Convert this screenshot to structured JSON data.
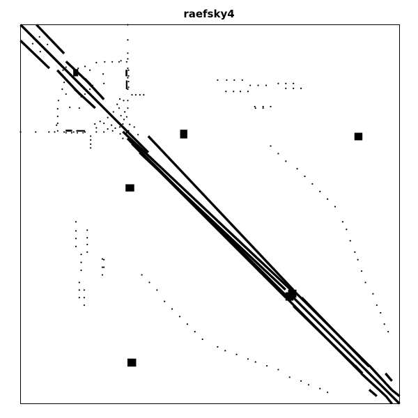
{
  "chart_data": {
    "type": "scatter",
    "title": "raefsky4",
    "xlabel": "",
    "ylabel": "",
    "xlim": [
      0,
      1
    ],
    "ylim": [
      0,
      1
    ],
    "y_axis_inverted": true,
    "axis_ticks": "none",
    "grid": false,
    "legend": "none",
    "marker_color": "#000000",
    "background": "#ffffff",
    "series": [
      {
        "kind": "band",
        "values": [
          [
            [
              0.0,
              0.0
            ],
            [
              0.337,
              0.337
            ]
          ],
          [
            [
              0.0,
              0.042
            ],
            [
              0.076,
              0.115
            ]
          ],
          [
            [
              0.042,
              0.0
            ],
            [
              0.115,
              0.076
            ]
          ],
          [
            [
              0.097,
              0.12
            ],
            [
              0.158,
              0.185
            ]
          ],
          [
            [
              0.12,
              0.097
            ],
            [
              0.185,
              0.158
            ]
          ],
          [
            [
              0.143,
              0.17
            ],
            [
              0.197,
              0.22
            ]
          ],
          [
            [
              0.17,
              0.143
            ],
            [
              0.22,
              0.197
            ]
          ],
          [
            [
              0.314,
              0.337
            ],
            [
              0.699,
              0.699
            ]
          ],
          [
            [
              0.294,
              0.314
            ],
            [
              0.7,
              0.72
            ]
          ],
          [
            [
              0.282,
              0.3
            ],
            [
              0.706,
              0.72
            ]
          ],
          [
            [
              0.337,
              0.294
            ],
            [
              0.72,
              0.7
            ]
          ],
          [
            [
              0.27,
              0.282
            ],
            [
              0.72,
              0.706
            ]
          ],
          [
            [
              0.72,
              0.72
            ],
            [
              1.0,
              1.0
            ]
          ],
          [
            [
              0.701,
              0.72
            ],
            [
              0.9,
              0.92
            ]
          ],
          [
            [
              0.72,
              0.701
            ],
            [
              0.92,
              0.9
            ]
          ],
          [
            [
              0.72,
              0.742
            ],
            [
              0.882,
              0.9
            ]
          ],
          [
            [
              0.742,
              0.72
            ],
            [
              0.9,
              0.882
            ]
          ],
          [
            [
              0.899,
              0.92
            ],
            [
              0.964,
              0.98
            ]
          ],
          [
            [
              0.92,
              0.899
            ],
            [
              0.98,
              0.964
            ]
          ],
          [
            [
              0.899,
              0.882
            ],
            [
              0.92,
              0.902
            ]
          ],
          [
            [
              0.882,
              0.899
            ],
            [
              0.902,
              0.92
            ]
          ],
          [
            [
              0.963,
              0.92
            ],
            [
              0.98,
              0.94
            ]
          ],
          [
            [
              0.92,
              0.963
            ],
            [
              0.94,
              0.98
            ]
          ],
          [
            [
              0.98,
              0.964
            ],
            [
              1.0,
              0.98
            ]
          ],
          [
            [
              0.964,
              0.98
            ],
            [
              0.98,
              1.0
            ]
          ]
        ]
      },
      {
        "kind": "block",
        "values": [
          [
            [
              0.881,
              0.285
            ],
            [
              0.902,
              0.305
            ]
          ],
          [
            [
              0.282,
              0.881
            ],
            [
              0.305,
              0.902
            ]
          ],
          [
            [
              0.706,
              0.699
            ],
            [
              0.728,
              0.72
            ]
          ],
          [
            [
              0.699,
              0.706
            ],
            [
              0.72,
              0.728
            ]
          ],
          [
            [
              0.421,
              0.277
            ],
            [
              0.44,
              0.3
            ]
          ],
          [
            [
              0.277,
              0.421
            ],
            [
              0.3,
              0.44
            ]
          ],
          [
            [
              0.139,
              0.119
            ],
            [
              0.152,
              0.136
            ]
          ],
          [
            [
              0.147,
              0.117
            ],
            [
              0.152,
              0.124
            ]
          ],
          [
            [
              0.277,
              0.119
            ],
            [
              0.282,
              0.136
            ]
          ],
          [
            [
              0.119,
              0.277
            ],
            [
              0.136,
              0.282
            ]
          ],
          [
            [
              0.278,
              0.147
            ],
            [
              0.282,
              0.17
            ]
          ],
          [
            [
              0.147,
              0.278
            ],
            [
              0.17,
              0.282
            ]
          ]
        ]
      },
      {
        "kind": "point",
        "values": [
          [
            0.12,
            0.112
          ],
          [
            0.152,
            0.115
          ],
          [
            0.112,
            0.12
          ],
          [
            0.115,
            0.152
          ],
          [
            0.0,
            0.283
          ],
          [
            0.04,
            0.283
          ],
          [
            0.075,
            0.283
          ],
          [
            0.283,
            0.0
          ],
          [
            0.283,
            0.04
          ],
          [
            0.283,
            0.075
          ],
          [
            0.115,
            0.283
          ],
          [
            0.14,
            0.283
          ],
          [
            0.17,
            0.283
          ],
          [
            0.283,
            0.115
          ],
          [
            0.283,
            0.14
          ],
          [
            0.283,
            0.17
          ],
          [
            0.283,
            0.22
          ],
          [
            0.22,
            0.283
          ],
          [
            0.29,
            0.31
          ],
          [
            0.31,
            0.29
          ],
          [
            0.09,
            0.283
          ],
          [
            0.283,
            0.09
          ],
          [
            0.2,
            0.283
          ],
          [
            0.283,
            0.2
          ],
          [
            0.17,
            0.183
          ],
          [
            0.12,
            0.183
          ],
          [
            0.183,
            0.12
          ],
          [
            0.183,
            0.17
          ],
          [
            0.05,
            0.032
          ],
          [
            0.032,
            0.05
          ],
          [
            0.071,
            0.052
          ],
          [
            0.052,
            0.071
          ],
          [
            0.1,
            0.2
          ],
          [
            0.2,
            0.1
          ],
          [
            0.155,
            0.22
          ],
          [
            0.22,
            0.155
          ],
          [
            0.16,
            0.19
          ],
          [
            0.19,
            0.16
          ],
          [
            0.18,
            0.205
          ],
          [
            0.205,
            0.18
          ],
          [
            0.13,
            0.218
          ],
          [
            0.218,
            0.13
          ],
          [
            0.23,
            0.245
          ],
          [
            0.245,
            0.23
          ],
          [
            0.24,
            0.265
          ],
          [
            0.265,
            0.24
          ],
          [
            0.255,
            0.21
          ],
          [
            0.21,
            0.255
          ],
          [
            0.22,
            0.26
          ],
          [
            0.26,
            0.22
          ],
          [
            0.262,
            0.196
          ],
          [
            0.196,
            0.262
          ],
          [
            0.28,
            0.243
          ],
          [
            0.243,
            0.28
          ],
          [
            0.25,
            0.273
          ],
          [
            0.273,
            0.25
          ],
          [
            0.27,
            0.262
          ],
          [
            0.262,
            0.27
          ],
          [
            0.11,
            0.17
          ],
          [
            0.17,
            0.11
          ],
          [
            0.15,
            0.175
          ],
          [
            0.175,
            0.15
          ],
          [
            0.23,
            0.275
          ],
          [
            0.275,
            0.23
          ],
          [
            0.095,
            0.265
          ],
          [
            0.265,
            0.095
          ],
          [
            0.272,
            0.2
          ],
          [
            0.2,
            0.272
          ],
          [
            0.283,
            0.283
          ],
          [
            0.288,
            0.263
          ],
          [
            0.263,
            0.288
          ],
          [
            0.3,
            0.27
          ],
          [
            0.27,
            0.3
          ],
          [
            0.28,
            0.285
          ],
          [
            0.285,
            0.28
          ],
          [
            0.285,
            0.12
          ],
          [
            0.285,
            0.135
          ],
          [
            0.285,
            0.15
          ],
          [
            0.285,
            0.165
          ],
          [
            0.12,
            0.285
          ],
          [
            0.135,
            0.285
          ],
          [
            0.15,
            0.285
          ],
          [
            0.165,
            0.285
          ],
          [
            0.294,
            0.185
          ],
          [
            0.304,
            0.185
          ],
          [
            0.315,
            0.185
          ],
          [
            0.325,
            0.185
          ],
          [
            0.185,
            0.294
          ],
          [
            0.185,
            0.304
          ],
          [
            0.185,
            0.315
          ],
          [
            0.185,
            0.325
          ],
          [
            0.222,
            0.098
          ],
          [
            0.242,
            0.098
          ],
          [
            0.26,
            0.098
          ],
          [
            0.28,
            0.098
          ],
          [
            0.098,
            0.222
          ],
          [
            0.098,
            0.242
          ],
          [
            0.098,
            0.26
          ],
          [
            0.098,
            0.28
          ],
          [
            0.52,
            0.146
          ],
          [
            0.544,
            0.146
          ],
          [
            0.564,
            0.146
          ],
          [
            0.585,
            0.146
          ],
          [
            0.146,
            0.52
          ],
          [
            0.146,
            0.544
          ],
          [
            0.146,
            0.564
          ],
          [
            0.146,
            0.585
          ],
          [
            0.606,
            0.16
          ],
          [
            0.627,
            0.16
          ],
          [
            0.648,
            0.16
          ],
          [
            0.16,
            0.606
          ],
          [
            0.16,
            0.627
          ],
          [
            0.16,
            0.648
          ],
          [
            0.542,
            0.176
          ],
          [
            0.562,
            0.176
          ],
          [
            0.58,
            0.176
          ],
          [
            0.6,
            0.176
          ],
          [
            0.176,
            0.542
          ],
          [
            0.176,
            0.562
          ],
          [
            0.176,
            0.58
          ],
          [
            0.176,
            0.6
          ],
          [
            0.618,
            0.216
          ],
          [
            0.64,
            0.216
          ],
          [
            0.66,
            0.216
          ],
          [
            0.216,
            0.618
          ],
          [
            0.216,
            0.64
          ],
          [
            0.216,
            0.66
          ],
          [
            0.68,
            0.155
          ],
          [
            0.7,
            0.155
          ],
          [
            0.72,
            0.155
          ],
          [
            0.155,
            0.68
          ],
          [
            0.155,
            0.7
          ],
          [
            0.155,
            0.72
          ],
          [
            0.7,
            0.168
          ],
          [
            0.72,
            0.168
          ],
          [
            0.74,
            0.168
          ],
          [
            0.168,
            0.7
          ],
          [
            0.168,
            0.72
          ],
          [
            0.168,
            0.74
          ],
          [
            0.62,
            0.22
          ],
          [
            0.64,
            0.22
          ],
          [
            0.22,
            0.62
          ],
          [
            0.22,
            0.64
          ],
          [
            0.32,
            0.66
          ],
          [
            0.66,
            0.32
          ],
          [
            0.34,
            0.68
          ],
          [
            0.68,
            0.34
          ],
          [
            0.36,
            0.7
          ],
          [
            0.7,
            0.36
          ],
          [
            0.38,
            0.73
          ],
          [
            0.73,
            0.38
          ],
          [
            0.4,
            0.75
          ],
          [
            0.75,
            0.4
          ],
          [
            0.42,
            0.77
          ],
          [
            0.77,
            0.42
          ],
          [
            0.44,
            0.79
          ],
          [
            0.79,
            0.44
          ],
          [
            0.46,
            0.81
          ],
          [
            0.81,
            0.46
          ],
          [
            0.48,
            0.83
          ],
          [
            0.83,
            0.48
          ],
          [
            0.52,
            0.85
          ],
          [
            0.85,
            0.52
          ],
          [
            0.54,
            0.86
          ],
          [
            0.86,
            0.54
          ],
          [
            0.57,
            0.87
          ],
          [
            0.87,
            0.57
          ],
          [
            0.6,
            0.882
          ],
          [
            0.882,
            0.6
          ],
          [
            0.62,
            0.89
          ],
          [
            0.89,
            0.62
          ],
          [
            0.65,
            0.9
          ],
          [
            0.9,
            0.65
          ],
          [
            0.68,
            0.91
          ],
          [
            0.91,
            0.68
          ],
          [
            0.71,
            0.93
          ],
          [
            0.93,
            0.71
          ],
          [
            0.74,
            0.94
          ],
          [
            0.94,
            0.74
          ],
          [
            0.76,
            0.95
          ],
          [
            0.95,
            0.76
          ],
          [
            0.79,
            0.96
          ],
          [
            0.96,
            0.79
          ],
          [
            0.81,
            0.97
          ],
          [
            0.97,
            0.81
          ]
        ]
      }
    ]
  }
}
